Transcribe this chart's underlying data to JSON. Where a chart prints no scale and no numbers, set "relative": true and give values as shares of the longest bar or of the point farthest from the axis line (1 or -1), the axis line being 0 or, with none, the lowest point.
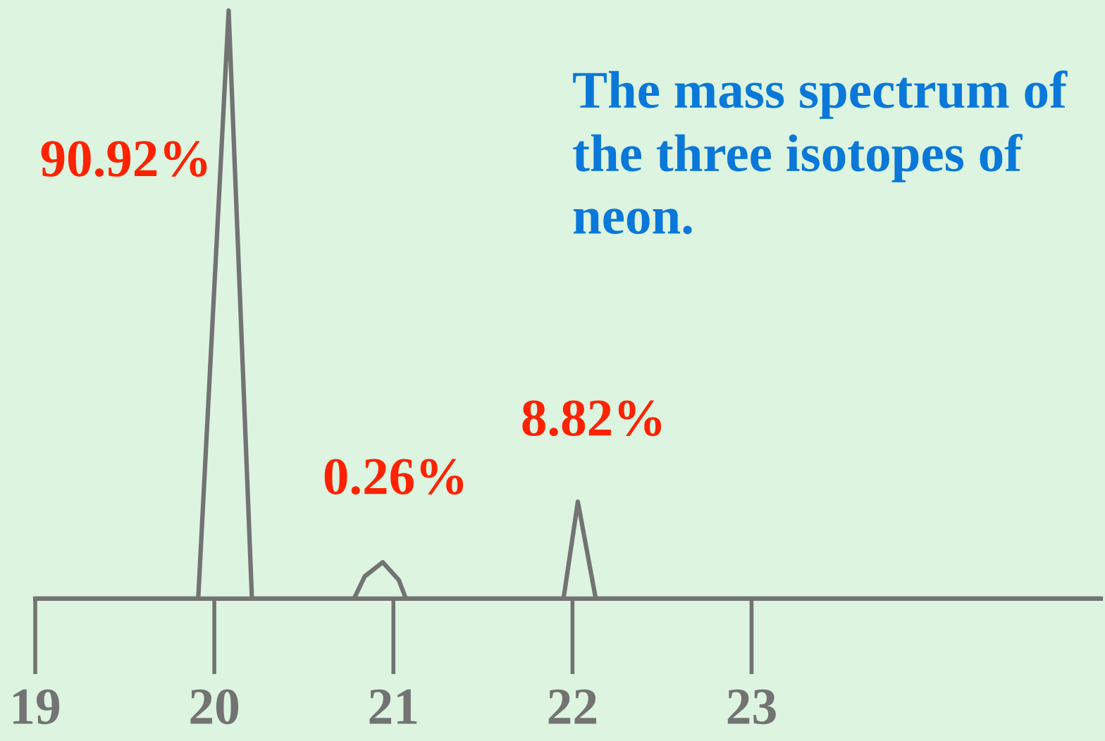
{
  "chart_data": {
    "type": "line",
    "relative": true,
    "title": "The mass spectrum of the three isotopes of neon.",
    "color": "#737373",
    "x": [
      19.0,
      19.91,
      20.08,
      20.21,
      20.78,
      20.84,
      20.94,
      21.03,
      21.07,
      21.95,
      22.03,
      22.13,
      24.95
    ],
    "values": [
      0,
      0,
      1,
      0,
      0,
      0.038,
      0.062,
      0.032,
      0,
      0,
      0.165,
      0,
      0
    ],
    "xlim": [
      19,
      24.95
    ],
    "xticks": [
      19,
      20,
      21,
      22,
      23
    ],
    "grid": false,
    "marker": "none",
    "line_style": "solid",
    "annotations": [
      {
        "text": "90.92%",
        "x": 20.08,
        "y": 1
      },
      {
        "text": "0.26%",
        "x": 20.94,
        "y": 0.062
      },
      {
        "text": "8.82%",
        "x": 22.03,
        "y": 0.165
      }
    ]
  }
}
